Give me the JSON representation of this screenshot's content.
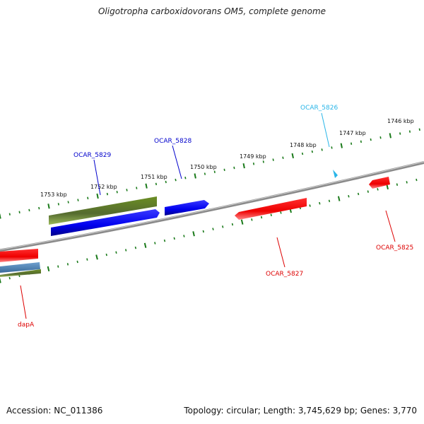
{
  "title": "Oligotropha carboxidovorans OM5, complete genome",
  "footer": {
    "accession": "Accession: NC_011386",
    "summary": "Topology: circular; Length: 3,745,629 bp; Genes: 3,770"
  },
  "tick_labels": [
    "1746 kbp",
    "1747 kbp",
    "1748 kbp",
    "1749 kbp",
    "1750 kbp",
    "1751 kbp",
    "1752 kbp",
    "1753 kbp"
  ],
  "genes": [
    {
      "name": "OCAR_5826",
      "color": "#29b5e8"
    },
    {
      "name": "OCAR_5828",
      "color": "#0000cc"
    },
    {
      "name": "OCAR_5829",
      "color": "#0000cc"
    },
    {
      "name": "OCAR_5825",
      "color": "#dd0000"
    },
    {
      "name": "OCAR_5827",
      "color": "#dd0000"
    },
    {
      "name": "dapA",
      "color": "#dd0000"
    }
  ],
  "colors": {
    "backbone": "#888888",
    "tick": "#1a7a1a",
    "forward_gene": "#0000ee",
    "reverse_gene": "#ee0000",
    "rna_gene": "#6b8e23",
    "other_gene": "#4682b4"
  }
}
